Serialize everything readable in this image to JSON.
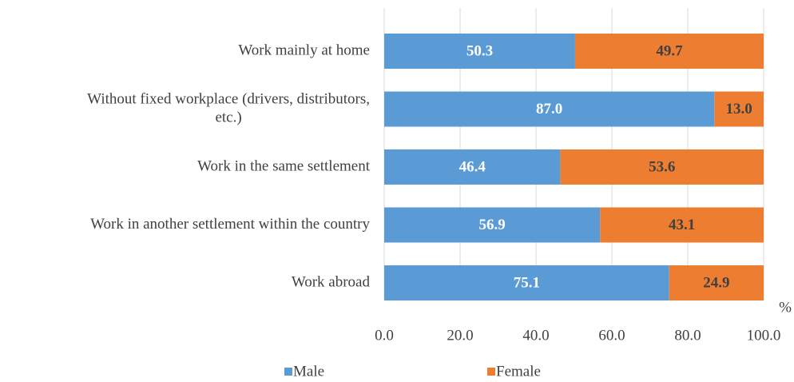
{
  "chart_data": {
    "type": "stacked-bar-horizontal",
    "categories": [
      "Work mainly at home",
      "Without fixed workplace (drivers, distributors, etc.)",
      "Work in the same settlement",
      "Work in another settlement within the country",
      "Work abroad"
    ],
    "series": [
      {
        "name": "Male",
        "color": "#5b9bd5",
        "values": [
          50.3,
          87.0,
          46.4,
          56.9,
          75.1
        ],
        "value_labels": [
          "50.3",
          "87.0",
          "46.4",
          "56.9",
          "75.1"
        ]
      },
      {
        "name": "Female",
        "color": "#ed7d31",
        "values": [
          49.7,
          13.0,
          53.6,
          43.1,
          24.9
        ],
        "value_labels": [
          "49.7",
          "13.0",
          "53.6",
          "43.1",
          "24.9"
        ]
      }
    ],
    "x_label": "%",
    "xlim": [
      0,
      100
    ],
    "xticks": [
      {
        "value": 0,
        "label": "0.0"
      },
      {
        "value": 20,
        "label": "20.0"
      },
      {
        "value": 40,
        "label": "40.0"
      },
      {
        "value": 60,
        "label": "60.0"
      },
      {
        "value": 80,
        "label": "80.0"
      },
      {
        "value": 100,
        "label": "100.0"
      }
    ],
    "grid": true,
    "legend": "bottom"
  }
}
